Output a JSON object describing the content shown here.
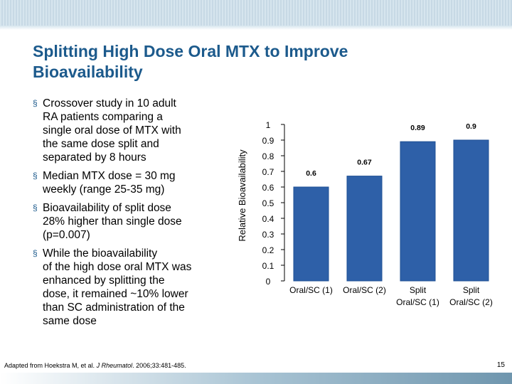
{
  "slide": {
    "title_line1": "Splitting High Dose Oral MTX to Improve",
    "title_line2": "Bioavailability",
    "bullets": [
      {
        "lines": [
          "Crossover study in 10 adult",
          "RA patients comparing a",
          "single oral dose of MTX with",
          "the same dose split and",
          "separated by 8 hours"
        ]
      },
      {
        "lines": [
          "Median MTX dose = 30 mg",
          "weekly (range 25-35 mg)"
        ]
      },
      {
        "lines": [
          "Bioavailability of split dose",
          "28% higher than single dose",
          "(p=0.007)"
        ]
      },
      {
        "lines": [
          "While the bioavailability",
          "of the high dose oral MTX was",
          "enhanced by splitting the",
          "dose, it remained ~10% lower",
          "than SC administration of the",
          "same dose"
        ]
      }
    ],
    "citation_prefix": "Adapted from Hoekstra M, et al. ",
    "citation_journal": "J Rheumatol",
    "citation_suffix": ". 2006;33:481-485.",
    "page_number": "15",
    "bullet_mark": "§"
  },
  "colors": {
    "title": "#1c5a8c",
    "bar": "#2e60a8",
    "bar_edge": "#1d4f94"
  },
  "chart_data": {
    "type": "bar",
    "categories": [
      [
        "Oral/SC (1)"
      ],
      [
        "Oral/SC (2)"
      ],
      [
        "Split",
        "Oral/SC (1)"
      ],
      [
        "Split",
        "Oral/SC (2)"
      ]
    ],
    "values": [
      0.6,
      0.67,
      0.89,
      0.9
    ],
    "value_labels": [
      "0.6",
      "0.67",
      "0.89",
      "0.9"
    ],
    "ylabel": "Relative Bioavailability",
    "xlabel": "",
    "title": "",
    "ylim": [
      0,
      1
    ],
    "yticks": [
      "0",
      "0.1",
      "0.2",
      "0.3",
      "0.4",
      "0.5",
      "0.6",
      "0.7",
      "0.8",
      "0.9",
      "1"
    ],
    "grid": false,
    "legend": "none"
  }
}
